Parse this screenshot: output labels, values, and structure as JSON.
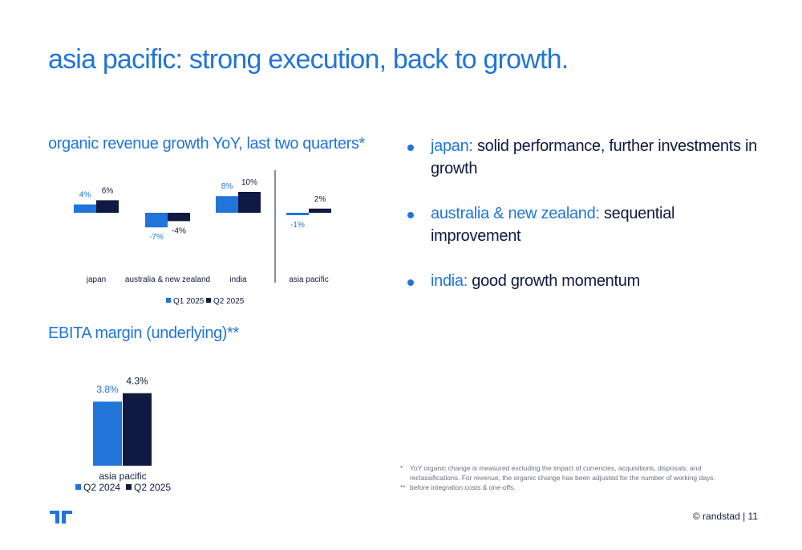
{
  "title": "asia pacific: strong execution, back to growth.",
  "growth_title": "organic revenue growth YoY, last two quarters*",
  "margin_title": "EBITA margin (underlying)**",
  "colors": {
    "light_blue": "#2175d9",
    "dark_navy": "#0f1941"
  },
  "bullets": [
    {
      "label": "japan:",
      "text": " solid performance, further investments in growth"
    },
    {
      "label": "australia & new zealand:",
      "text": " sequential improvement"
    },
    {
      "label": "india:",
      "text": " good growth momentum"
    }
  ],
  "footnotes": [
    {
      "mark": "*",
      "text": "YoY organic change is measured excluding the impact of currencies, acquisitions, disposals, and reclassifications. For revenue, the organic change has been adjusted for the number of working days."
    },
    {
      "mark": "**",
      "text": "before integration costs & one-offs."
    }
  ],
  "footer": "© randstad | 11",
  "chart_data": [
    {
      "type": "bar",
      "categories": [
        "japan",
        "australia & new zealand",
        "india",
        "asia pacific"
      ],
      "series": [
        {
          "name": "Q1 2025",
          "values": [
            4,
            -7,
            8,
            -1
          ],
          "labels": [
            "4%",
            "-7%",
            "8%",
            "-1%"
          ],
          "color": "#2175d9"
        },
        {
          "name": "Q2 2025",
          "values": [
            6,
            -4,
            10,
            2
          ],
          "labels": [
            "6%",
            "-4%",
            "10%",
            "2%"
          ],
          "color": "#0f1941"
        }
      ],
      "legend": "bottom-center",
      "grid": false
    },
    {
      "type": "bar",
      "categories": [
        "asia pacific"
      ],
      "series": [
        {
          "name": "Q2 2024",
          "values": [
            3.8
          ],
          "labels": [
            "3.8%"
          ],
          "color": "#2175d9"
        },
        {
          "name": "Q2 2025",
          "values": [
            4.3
          ],
          "labels": [
            "4.3%"
          ],
          "color": "#0f1941"
        }
      ],
      "legend": "bottom-center",
      "grid": false
    }
  ]
}
